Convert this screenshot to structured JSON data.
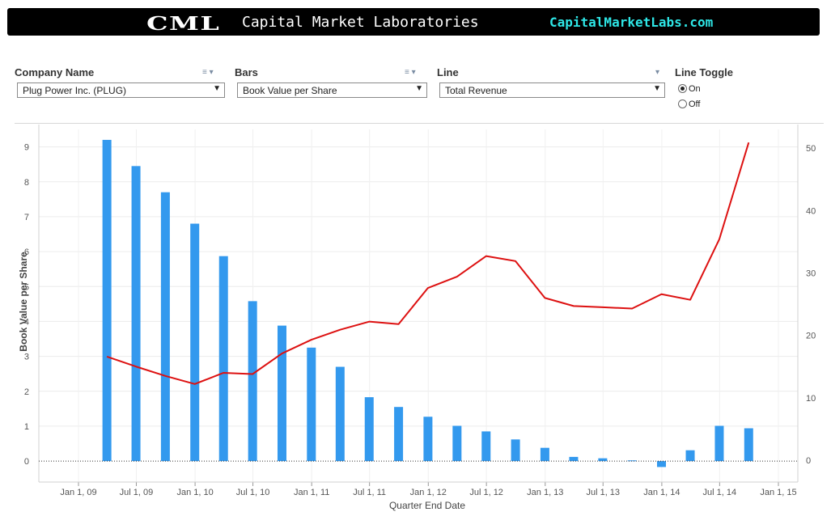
{
  "header": {
    "logo_text": "CML",
    "brand_name": "Capital Market Laboratories",
    "brand_url": "CapitalMarketLabs.com"
  },
  "filters": {
    "company": {
      "label": "Company Name",
      "value": "Plug Power Inc. (PLUG)",
      "tools_icon": "list-filter-icon"
    },
    "bars": {
      "label": "Bars",
      "value": "Book Value per Share",
      "tools_icon": "list-filter-icon"
    },
    "line": {
      "label": "Line",
      "value": "Total Revenue",
      "tools_icon": "dropdown-icon"
    },
    "line_toggle": {
      "label": "Line Toggle",
      "options": [
        {
          "label": "On",
          "checked": true
        },
        {
          "label": "Off",
          "checked": false
        }
      ]
    }
  },
  "chart_data": {
    "type": "bar",
    "title": "",
    "xlabel": "Quarter End Date",
    "ylabel": "Book Value per Share",
    "y2label": "",
    "x_ticks": [
      "Jan 1, 09",
      "Jul 1, 09",
      "Jan 1, 10",
      "Jul 1, 10",
      "Jan 1, 11",
      "Jul 1, 11",
      "Jan 1, 12",
      "Jul 1, 12",
      "Jan 1, 13",
      "Jul 1, 13",
      "Jan 1, 14",
      "Jul 1, 14",
      "Jan 1, 15"
    ],
    "ylim": [
      -0.6,
      9.5
    ],
    "y_ticks": [
      0,
      1,
      2,
      3,
      4,
      5,
      6,
      7,
      8,
      9
    ],
    "y2lim": [
      -3.5,
      53
    ],
    "y2_ticks": [
      0,
      10,
      20,
      30,
      40,
      50
    ],
    "grid": true,
    "bar_color": "#3399ee",
    "line_color": "#dd1111",
    "series": [
      {
        "kind": "bar",
        "axis": "left",
        "x": [
          "2009-03-31",
          "2009-06-30",
          "2009-09-30",
          "2009-12-31",
          "2010-03-31",
          "2010-06-30",
          "2010-09-30",
          "2010-12-31",
          "2011-03-31",
          "2011-06-30",
          "2011-09-30",
          "2011-12-31",
          "2012-03-31",
          "2012-06-30",
          "2012-09-30",
          "2012-12-31",
          "2013-03-31",
          "2013-06-30",
          "2013-09-30",
          "2013-12-31",
          "2014-03-31",
          "2014-06-30",
          "2014-09-30"
        ],
        "values": [
          9.2,
          8.45,
          7.7,
          6.8,
          5.87,
          4.58,
          3.88,
          3.25,
          2.7,
          1.83,
          1.55,
          1.27,
          1.01,
          0.85,
          0.62,
          0.38,
          0.12,
          0.08,
          0.02,
          -0.17,
          0.31,
          1.01,
          0.94
        ]
      },
      {
        "kind": "line",
        "axis": "right",
        "x": [
          "2009-03-31",
          "2009-06-30",
          "2009-09-30",
          "2009-12-31",
          "2010-03-31",
          "2010-06-30",
          "2010-09-30",
          "2010-12-31",
          "2011-03-31",
          "2011-06-30",
          "2011-09-30",
          "2011-12-31",
          "2012-03-31",
          "2012-06-30",
          "2012-09-30",
          "2012-12-31",
          "2013-03-31",
          "2013-06-30",
          "2013-09-30",
          "2013-12-31",
          "2014-03-31",
          "2014-06-30",
          "2014-09-30"
        ],
        "values": [
          16.6,
          15.0,
          13.5,
          12.2,
          14.0,
          13.8,
          17.1,
          19.3,
          20.9,
          22.2,
          21.8,
          27.6,
          29.4,
          32.7,
          31.9,
          26.0,
          24.7,
          24.5,
          24.3,
          26.6,
          25.7,
          35.4,
          50.9
        ]
      }
    ]
  }
}
